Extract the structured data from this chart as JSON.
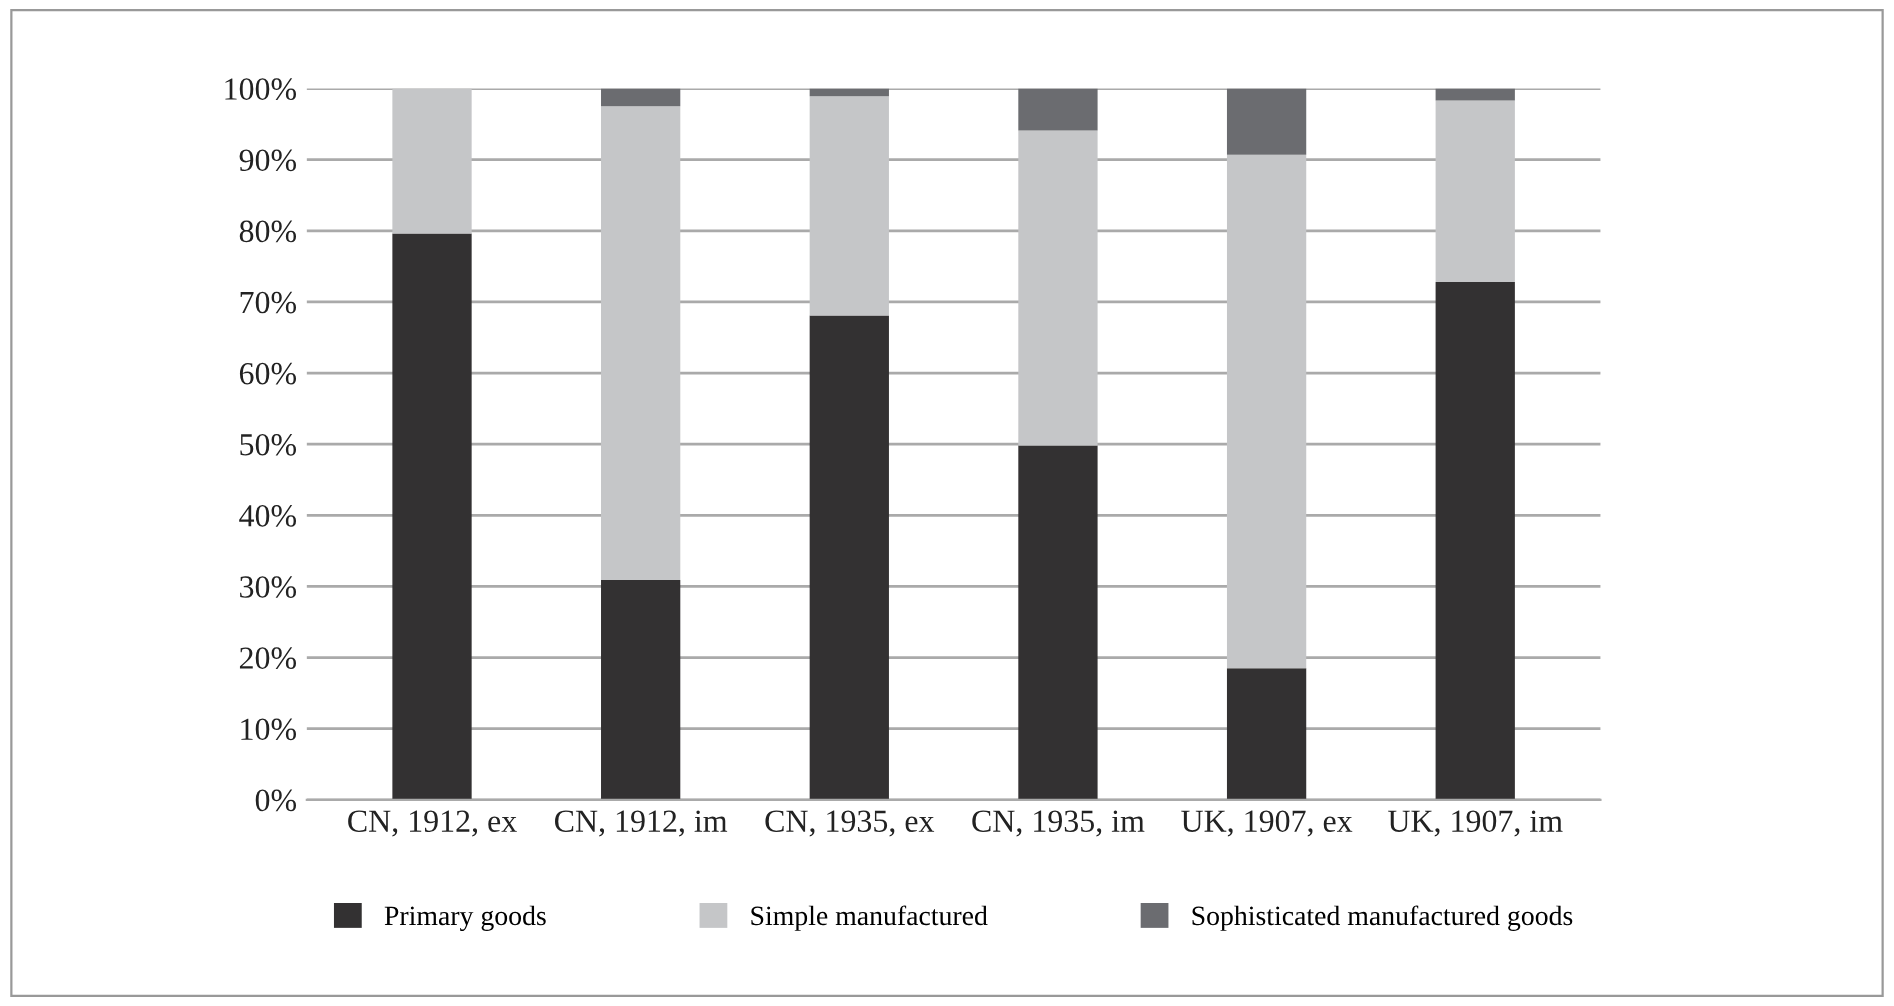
{
  "chart_data": {
    "type": "bar",
    "stacked": true,
    "categories": [
      "CN, 1912, ex",
      "CN, 1912, im",
      "CN, 1935, ex",
      "CN, 1935, im",
      "UK, 1907, ex",
      "UK, 1907, im"
    ],
    "series": [
      {
        "name": "Primary goods",
        "color": "#333132",
        "values": [
          79.6,
          30.9,
          68.1,
          49.8,
          18.5,
          72.8
        ]
      },
      {
        "name": "Simple manufactured",
        "color": "#c5c6c8",
        "values": [
          20.4,
          66.6,
          30.8,
          44.3,
          72.2,
          25.5
        ]
      },
      {
        "name": "Sophisticated manufactured goods",
        "color": "#6b6c70",
        "values": [
          0,
          2.5,
          1.1,
          5.9,
          9.3,
          1.7
        ]
      }
    ],
    "ylim": [
      0,
      100
    ],
    "yticks": [
      {
        "value": 0,
        "label": "0%"
      },
      {
        "value": 10,
        "label": "10%"
      },
      {
        "value": 20,
        "label": "20%"
      },
      {
        "value": 30,
        "label": "30%"
      },
      {
        "value": 40,
        "label": "40%"
      },
      {
        "value": 50,
        "label": "50%"
      },
      {
        "value": 60,
        "label": "60%"
      },
      {
        "value": 70,
        "label": "70%"
      },
      {
        "value": 80,
        "label": "80%"
      },
      {
        "value": 90,
        "label": "90%"
      },
      {
        "value": 100,
        "label": "100%"
      }
    ],
    "grid": "y",
    "legend": "bottom"
  }
}
